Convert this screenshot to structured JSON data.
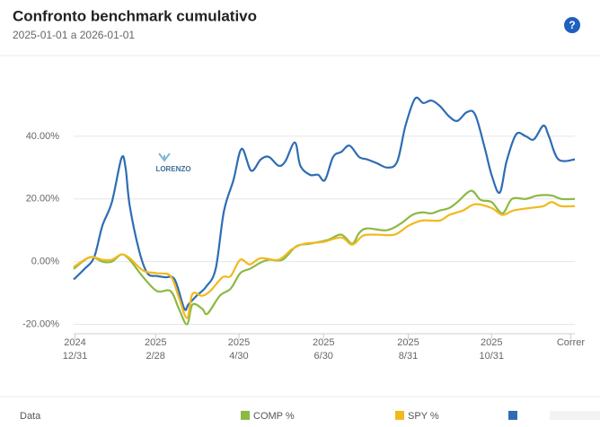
{
  "header": {
    "title": "Confronto benchmark cumulativo",
    "subtitle": "2025-01-01 a 2026-01-01",
    "help_icon": "?"
  },
  "watermark": "LORENZO",
  "chart_data": {
    "type": "line",
    "xlim": [
      -1,
      366
    ],
    "xticks": [
      {
        "value": 0,
        "label": [
          "2024",
          "12/31"
        ]
      },
      {
        "value": 59,
        "label": [
          "2025",
          "2/28"
        ]
      },
      {
        "value": 120,
        "label": [
          "2025",
          "4/30"
        ]
      },
      {
        "value": 182,
        "label": [
          "2025",
          "6/30"
        ]
      },
      {
        "value": 244,
        "label": [
          "2025",
          "8/31"
        ]
      },
      {
        "value": 305,
        "label": [
          "2025",
          "10/31"
        ]
      },
      {
        "value": 363,
        "label": [
          "Correr"
        ]
      }
    ],
    "ylim": [
      -23,
      62
    ],
    "yticks": [
      {
        "value": 40,
        "label": "40.00%"
      },
      {
        "value": 20,
        "label": "20.00%"
      },
      {
        "value": 0,
        "label": "0.00%"
      },
      {
        "value": -20,
        "label": "-20.00%"
      }
    ],
    "grid": true,
    "legend_title": "Data",
    "series": [
      {
        "color": "#2e6db4",
        "x": [
          -1,
          7,
          14,
          20,
          27,
          34,
          37,
          40,
          47,
          53,
          60,
          66,
          73,
          80,
          83,
          89,
          96,
          103,
          109,
          116,
          122,
          129,
          136,
          142,
          149,
          154,
          161,
          165,
          172,
          178,
          183,
          189,
          195,
          201,
          208,
          214,
          221,
          229,
          236,
          242,
          249,
          255,
          261,
          267,
          274,
          280,
          287,
          293,
          300,
          305,
          311,
          316,
          323,
          330,
          336,
          343,
          347,
          354,
          366
        ],
        "values": [
          -5.7,
          -2.3,
          1.4,
          11.4,
          19,
          33,
          30,
          18,
          3.4,
          -3.7,
          -4.6,
          -5,
          -5.7,
          -15,
          -13.7,
          -10.9,
          -8,
          -2.3,
          16,
          26,
          36,
          29,
          32.6,
          33.4,
          30.6,
          32,
          38,
          30.6,
          27.7,
          27.7,
          26,
          33.4,
          35,
          37,
          33.4,
          32.6,
          31.4,
          30,
          32,
          43.4,
          52,
          50.6,
          51.4,
          49.7,
          46.3,
          44.9,
          47.7,
          46.9,
          36.3,
          27.7,
          22,
          32,
          40.6,
          40,
          39,
          43.4,
          40,
          32.6,
          32.6
        ]
      },
      {
        "name": "COMP %",
        "color": "#8cb944",
        "x": [
          -1,
          11,
          20,
          27,
          34,
          40,
          50,
          60,
          70,
          76,
          82,
          86,
          93,
          97,
          106,
          114,
          121,
          128,
          136,
          142,
          152,
          162,
          172,
          185,
          195,
          203,
          208,
          214,
          228,
          238,
          247,
          254,
          261,
          267,
          274,
          280,
          290,
          297,
          305,
          313,
          320,
          330,
          339,
          349,
          356,
          366
        ],
        "values": [
          -2.3,
          1.4,
          0,
          0,
          2.3,
          0.6,
          -5,
          -9.4,
          -9.4,
          -15,
          -20,
          -13.7,
          -15,
          -16.6,
          -10.9,
          -8.6,
          -3.7,
          -2.3,
          -0.3,
          0.6,
          0.6,
          4.9,
          5.7,
          6.9,
          8.6,
          5.7,
          9.1,
          10.6,
          10,
          12,
          14.9,
          15.7,
          15.4,
          16.3,
          17.1,
          19,
          22.6,
          19.7,
          19,
          15.4,
          20,
          20,
          21.1,
          21.1,
          20,
          20
        ]
      },
      {
        "name": "SPY %",
        "color": "#f2b91d",
        "x": [
          -1,
          11,
          20,
          27,
          34,
          40,
          50,
          60,
          70,
          76,
          82,
          86,
          93,
          99,
          108,
          114,
          121,
          128,
          136,
          149,
          159,
          168,
          182,
          195,
          203,
          211,
          221,
          234,
          244,
          254,
          267,
          274,
          284,
          293,
          305,
          313,
          321,
          333,
          343,
          349,
          356,
          366
        ],
        "values": [
          -1.7,
          1.4,
          0.6,
          0.6,
          2.3,
          1.1,
          -2.9,
          -3.7,
          -4.6,
          -11.4,
          -18,
          -10.3,
          -10.9,
          -9.4,
          -5,
          -4.6,
          0.6,
          -0.9,
          1.1,
          0.6,
          4,
          5.7,
          6.3,
          7.7,
          5.4,
          8.3,
          8.6,
          8.6,
          11.4,
          13.1,
          13.1,
          14.9,
          16.3,
          18.3,
          17.1,
          14.9,
          16.3,
          17.1,
          17.7,
          19,
          17.7,
          17.7
        ]
      }
    ]
  }
}
